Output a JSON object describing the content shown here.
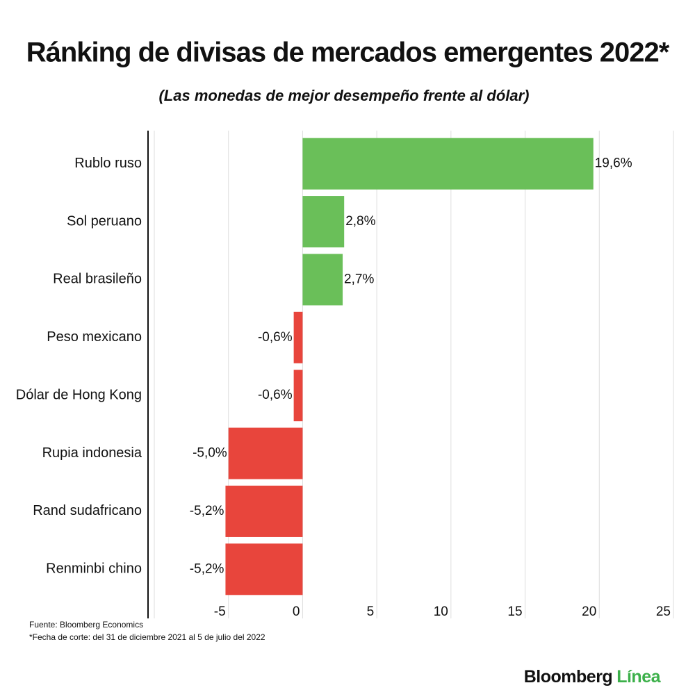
{
  "chart_data": {
    "type": "hbar",
    "title": "Ránking de divisas de mercados emergentes 2022*",
    "subtitle": "(Las monedas de mejor desempeño frente al dólar)",
    "categories": [
      "Rublo ruso",
      "Sol peruano",
      "Real brasileño",
      "Peso mexicano",
      "Dólar de Hong Kong",
      "Rupia indonesia",
      "Rand sudafricano",
      "Renminbi chino"
    ],
    "values": [
      19.6,
      2.8,
      2.7,
      -0.6,
      -0.6,
      -5.0,
      -5.2,
      -5.2
    ],
    "value_labels": [
      "19,6%",
      "2,8%",
      "2,7%",
      "-0,6%",
      "-0,6%",
      "-5,0%",
      "-5,2%",
      "-5,2%"
    ],
    "colors": [
      "#6abf59",
      "#6abf59",
      "#6abf59",
      "#e8453c",
      "#e8453c",
      "#e8453c",
      "#e8453c",
      "#e8453c"
    ],
    "xlim": [
      -10,
      25
    ],
    "xticks": [
      -5,
      0,
      5,
      10,
      15,
      20,
      25
    ],
    "grid": true,
    "source": "Fuente: Bloomberg Economics",
    "footnote": "*Fecha de corte: del 31 de diciembre 2021 al 5 de julio del 2022",
    "logo": {
      "brand": "Bloomberg",
      "product": "Línea"
    }
  }
}
